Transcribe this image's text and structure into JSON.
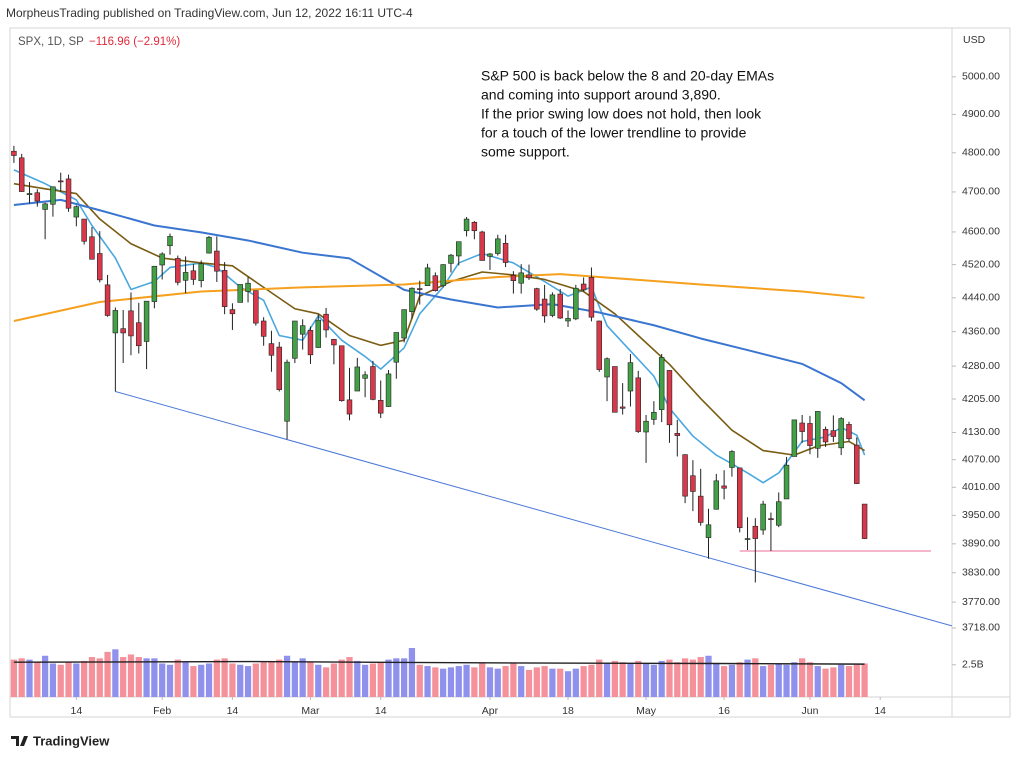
{
  "header": {
    "publisher": "MorpheusTrading published on TradingView.com, Jun 12, 2022 16:11 UTC-4",
    "symbol": "SPX, 1D, SP",
    "change": "−116.96 (−2.91%)",
    "currency": "USD"
  },
  "footer": {
    "brand": "TradingView"
  },
  "chart_data": [
    {
      "type": "candlestick",
      "log": true,
      "note": [
        "S&P 500 is back below the 8 and 20-day EMAs",
        "and coming into support around 3,890.",
        "If the prior swing low does not hold, then look",
        "for a touch of the lower trendline to provide",
        "some support."
      ],
      "up_color": "#43a047",
      "down_color": "#d9384a",
      "wick_color": "#222222",
      "open": [
        4804,
        4787,
        4693,
        4698,
        4656,
        4669,
        4728,
        4733,
        4637,
        4632,
        4588,
        4547,
        4471,
        4357,
        4367,
        4409,
        4381,
        4337,
        4431,
        4519,
        4566,
        4535,
        4482,
        4505,
        4481,
        4548,
        4553,
        4506,
        4412,
        4429,
        4455,
        4457,
        4385,
        4332,
        4324,
        4155,
        4298,
        4354,
        4363,
        4323,
        4401,
        4342,
        4327,
        4203,
        4223,
        4252,
        4279,
        4202,
        4188,
        4289,
        4345,
        4407,
        4462,
        4469,
        4493,
        4469,
        4523,
        4541,
        4603,
        4624,
        4600,
        4540,
        4547,
        4572,
        4494,
        4475,
        4495,
        4462,
        4437,
        4398,
        4449,
        4385,
        4390,
        4473,
        4489,
        4385,
        4255,
        4279,
        4187,
        4223,
        4253,
        4131,
        4159,
        4181,
        4270,
        4128,
        4081,
        4035,
        3991,
        3903,
        3963,
        4013,
        4053,
        4052,
        3900,
        3927,
        3919,
        3943,
        3929,
        3985,
        4077,
        4151,
        4150,
        4095,
        4137,
        4134,
        4096,
        4148,
        4102,
        3974
      ],
      "high": [
        4818,
        4797,
        4725,
        4707,
        4673,
        4714,
        4749,
        4744,
        4666,
        4632,
        4612,
        4602,
        4495,
        4417,
        4411,
        4453,
        4428,
        4432,
        4516,
        4550,
        4596,
        4542,
        4540,
        4521,
        4530,
        4590,
        4589,
        4526,
        4427,
        4472,
        4490,
        4457,
        4394,
        4362,
        4336,
        4295,
        4385,
        4389,
        4372,
        4401,
        4416,
        4343,
        4327,
        4276,
        4299,
        4268,
        4292,
        4247,
        4271,
        4358,
        4412,
        4465,
        4481,
        4522,
        4501,
        4521,
        4546,
        4576,
        4637,
        4627,
        4603,
        4548,
        4593,
        4593,
        4504,
        4521,
        4520,
        4464,
        4471,
        4453,
        4461,
        4410,
        4471,
        4489,
        4513,
        4386,
        4300,
        4279,
        4241,
        4308,
        4269,
        4169,
        4200,
        4308,
        4271,
        4158,
        4082,
        4069,
        4050,
        3964,
        4039,
        4047,
        4091,
        4052,
        3946,
        3944,
        3981,
        3956,
        3999,
        4076,
        4158,
        4169,
        4167,
        4177,
        4143,
        4168,
        4164,
        4154,
        4119,
        3974
      ],
      "low": [
        4774,
        4700,
        4671,
        4663,
        4582,
        4638,
        4701,
        4650,
        4614,
        4569,
        4533,
        4477,
        4395,
        4222,
        4287,
        4305,
        4309,
        4273,
        4415,
        4484,
        4544,
        4470,
        4451,
        4471,
        4465,
        4547,
        4478,
        4401,
        4364,
        4429,
        4429,
        4374,
        4327,
        4267,
        4222,
        4115,
        4287,
        4318,
        4285,
        4322,
        4346,
        4284,
        4199,
        4157,
        4223,
        4209,
        4202,
        4162,
        4187,
        4251,
        4335,
        4390,
        4424,
        4469,
        4455,
        4465,
        4501,
        4518,
        4589,
        4582,
        4530,
        4507,
        4542,
        4514,
        4450,
        4450,
        4483,
        4409,
        4381,
        4394,
        4390,
        4371,
        4387,
        4455,
        4384,
        4267,
        4200,
        4175,
        4170,
        4188,
        4129,
        4063,
        4147,
        4153,
        4107,
        4077,
        3976,
        3959,
        3928,
        3859,
        3962,
        3984,
        4033,
        3914,
        3877,
        3810,
        3909,
        3875,
        3925,
        3985,
        4077,
        4107,
        4082,
        4074,
        4098,
        4109,
        4080,
        4110,
        4017,
        3900
      ],
      "close": [
        4793,
        4701,
        4696,
        4677,
        4670,
        4713,
        4726,
        4659,
        4663,
        4577,
        4533,
        4483,
        4398,
        4410,
        4357,
        4350,
        4327,
        4432,
        4516,
        4546,
        4589,
        4477,
        4501,
        4484,
        4522,
        4587,
        4504,
        4419,
        4402,
        4472,
        4475,
        4380,
        4349,
        4305,
        4226,
        4289,
        4385,
        4374,
        4306,
        4387,
        4364,
        4329,
        4201,
        4171,
        4278,
        4260,
        4204,
        4173,
        4262,
        4358,
        4412,
        4463,
        4461,
        4512,
        4457,
        4520,
        4543,
        4576,
        4632,
        4603,
        4530,
        4546,
        4583,
        4525,
        4481,
        4500,
        4488,
        4413,
        4397,
        4447,
        4392,
        4391,
        4463,
        4459,
        4394,
        4272,
        4297,
        4175,
        4184,
        4288,
        4132,
        4155,
        4175,
        4300,
        4147,
        4123,
        3991,
        4001,
        3935,
        3930,
        4024,
        4008,
        4088,
        3924,
        3901,
        3901,
        3974,
        3941,
        3979,
        4058,
        4158,
        4132,
        4101,
        4177,
        4109,
        4121,
        4161,
        4116,
        4018,
        3901
      ],
      "lines": [
        {
          "color": "#4aa8e0",
          "x": [
            0,
            4,
            8,
            10,
            13,
            15,
            18,
            20,
            24,
            26,
            29,
            32,
            34,
            37,
            39,
            42,
            45,
            47,
            50,
            52,
            55,
            57,
            60,
            64,
            68,
            71,
            74,
            76,
            79,
            82,
            84,
            87,
            90,
            92,
            94,
            96,
            98,
            101,
            104,
            106,
            108,
            109
          ],
          "values": [
            4756,
            4721,
            4680,
            4616,
            4536,
            4460,
            4479,
            4513,
            4524,
            4513,
            4466,
            4434,
            4351,
            4340,
            4397,
            4340,
            4302,
            4273,
            4322,
            4402,
            4466,
            4524,
            4547,
            4524,
            4479,
            4444,
            4466,
            4374,
            4315,
            4257,
            4184,
            4122,
            4080,
            4061,
            4041,
            4020,
            4041,
            4110,
            4120,
            4141,
            4124,
            4080
          ]
        },
        {
          "color": "#7a5c12",
          "x": [
            0,
            4,
            8,
            11,
            15,
            19,
            24,
            28,
            32,
            36,
            39,
            43,
            47,
            50,
            52,
            56,
            60,
            64,
            68,
            73,
            77,
            80,
            84,
            88,
            92,
            96,
            100,
            103,
            107,
            109
          ],
          "values": [
            4721,
            4708,
            4696,
            4632,
            4571,
            4536,
            4524,
            4517,
            4465,
            4414,
            4402,
            4351,
            4328,
            4340,
            4444,
            4479,
            4502,
            4495,
            4484,
            4455,
            4402,
            4351,
            4284,
            4206,
            4135,
            4090,
            4080,
            4100,
            4110,
            4090
          ]
        },
        {
          "color": "#3a76d0",
          "x": [
            0,
            6,
            11,
            18,
            24,
            30,
            37,
            43,
            50,
            56,
            62,
            69,
            75,
            82,
            88,
            94,
            101,
            106,
            109
          ],
          "values": [
            4667,
            4680,
            4654,
            4616,
            4599,
            4579,
            4549,
            4535,
            4459,
            4436,
            4417,
            4425,
            4405,
            4375,
            4344,
            4317,
            4285,
            4241,
            4202
          ]
        },
        {
          "color": "#f5a01e",
          "x": [
            0,
            11,
            24,
            37,
            50,
            62,
            70,
            75,
            88,
            101,
            109
          ],
          "values": [
            4385,
            4430,
            4455,
            4465,
            4472,
            4490,
            4497,
            4490,
            4472,
            4455,
            4440
          ]
        }
      ],
      "trendline": {
        "color": "#4a78d8",
        "x": [
          13,
          120.2
        ],
        "values": [
          4222,
          3722
        ]
      },
      "support": {
        "color": "#f4b6c8",
        "x": [
          93,
          117.5
        ],
        "value": 3875
      },
      "xlim": [
        -0.5,
        120.2
      ],
      "xticks": [
        {
          "value": 8,
          "label": "14"
        },
        {
          "value": 19,
          "label": "Feb"
        },
        {
          "value": 28,
          "label": "14"
        },
        {
          "value": 38,
          "label": "Mar"
        },
        {
          "value": 47,
          "label": "14"
        },
        {
          "value": 61,
          "label": "Apr"
        },
        {
          "value": 71,
          "label": "18"
        },
        {
          "value": 81,
          "label": "May"
        },
        {
          "value": 91,
          "label": "16"
        },
        {
          "value": 102,
          "label": "Jun"
        },
        {
          "value": 111,
          "label": "14"
        }
      ],
      "ylim": [
        3694,
        5133
      ],
      "yticks": [
        {
          "value": 5000,
          "label": "5000.00"
        },
        {
          "value": 4900,
          "label": "4900.00"
        },
        {
          "value": 4800,
          "label": "4800.00"
        },
        {
          "value": 4700,
          "label": "4700.00"
        },
        {
          "value": 4600,
          "label": "4600.00"
        },
        {
          "value": 4520,
          "label": "4520.00"
        },
        {
          "value": 4440,
          "label": "4440.00"
        },
        {
          "value": 4360,
          "label": "4360.00"
        },
        {
          "value": 4280,
          "label": "4280.00"
        },
        {
          "value": 4205,
          "label": "4205.00"
        },
        {
          "value": 4130,
          "label": "4130.00"
        },
        {
          "value": 4070,
          "label": "4070.00"
        },
        {
          "value": 4010,
          "label": "4010.00"
        },
        {
          "value": 3950,
          "label": "3950.00"
        },
        {
          "value": 3890,
          "label": "3890.00"
        },
        {
          "value": 3830,
          "label": "3830.00"
        },
        {
          "value": 3770,
          "label": "3770.00"
        },
        {
          "value": 3718,
          "label": "3718.00"
        }
      ]
    },
    {
      "type": "bar",
      "up_color": "#8f91ec",
      "down_color": "#f4919a",
      "values": [
        2.9,
        3.0,
        2.9,
        2.7,
        3.2,
        2.6,
        2.5,
        2.7,
        2.6,
        2.8,
        3.1,
        3.0,
        3.5,
        3.7,
        3.1,
        3.3,
        3.1,
        3.0,
        3.0,
        2.6,
        2.5,
        2.9,
        2.7,
        2.4,
        2.5,
        2.6,
        2.9,
        3.0,
        2.6,
        2.5,
        2.4,
        2.6,
        2.7,
        2.8,
        2.9,
        3.2,
        2.7,
        3.0,
        2.7,
        2.5,
        2.3,
        2.6,
        2.9,
        3.1,
        2.8,
        2.5,
        2.6,
        2.7,
        2.9,
        3.0,
        3.0,
        3.8,
        2.5,
        2.4,
        2.3,
        2.2,
        2.3,
        2.4,
        2.5,
        2.3,
        2.6,
        2.3,
        2.2,
        2.4,
        2.6,
        2.4,
        2.1,
        2.3,
        2.4,
        2.2,
        2.2,
        2.0,
        2.2,
        2.4,
        2.5,
        2.9,
        2.6,
        2.8,
        2.7,
        2.6,
        2.8,
        2.6,
        2.5,
        2.8,
        2.9,
        2.7,
        3.0,
        2.9,
        3.1,
        3.2,
        2.6,
        2.4,
        2.5,
        2.7,
        2.9,
        3.0,
        2.4,
        2.5,
        2.6,
        2.5,
        2.7,
        3.0,
        2.7,
        2.4,
        2.2,
        2.3,
        2.5,
        2.4,
        2.5,
        2.6
      ],
      "ma": {
        "color": "#222222",
        "x": [
          0,
          30,
          60,
          90,
          109
        ],
        "values": [
          2.7,
          2.75,
          2.65,
          2.6,
          2.55
        ]
      },
      "ylim": [
        0,
        4.5
      ],
      "yticks": [
        {
          "value": 2.5,
          "label": "2.5B"
        }
      ]
    }
  ]
}
